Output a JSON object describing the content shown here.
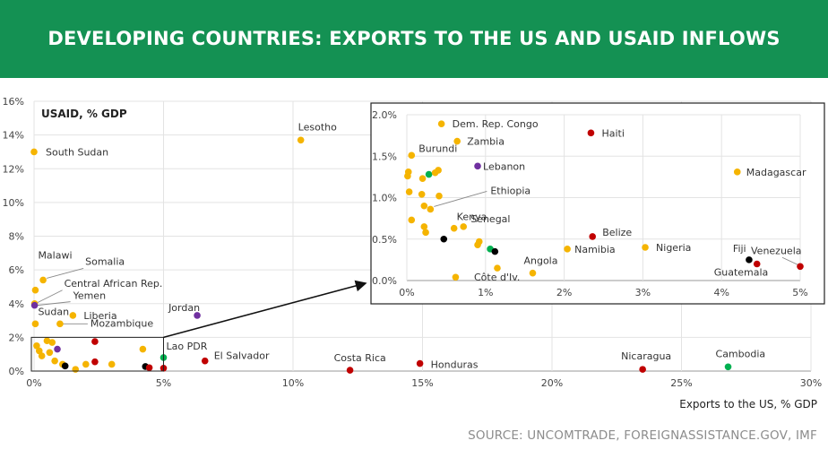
{
  "title": "DEVELOPING COUNTRIES: EXPORTS TO THE US AND USAID INFLOWS",
  "source": "SOURCE: UNCOMTRADE, FOREIGNASSISTANCE.GOV, IMF",
  "colors": {
    "banner": "#149153",
    "yellow": "#f5b400",
    "red": "#c00000",
    "purple": "#7030a0",
    "green": "#00b050",
    "black": "#000000"
  },
  "chart_data": [
    {
      "type": "scatter",
      "title": "",
      "xlabel": "Exports to the US, % GDP",
      "ylabel": "USAID, % GDP",
      "xlim": [
        0,
        30
      ],
      "ylim": [
        0,
        16
      ],
      "x_ticks": [
        "0%",
        "5%",
        "10%",
        "15%",
        "20%",
        "25%",
        "30%"
      ],
      "y_ticks": [
        "0%",
        "2%",
        "4%",
        "6%",
        "8%",
        "10%",
        "12%",
        "14%",
        "16%"
      ],
      "grid": true,
      "points": [
        {
          "label": "Lesotho",
          "x": 10.3,
          "y": 13.7,
          "color": "yellow"
        },
        {
          "label": "South Sudan",
          "x": 0.0,
          "y": 13.0,
          "color": "yellow"
        },
        {
          "label": "Malawi",
          "x": 0.05,
          "y": 4.8,
          "color": "yellow"
        },
        {
          "label": "Somalia",
          "x": 0.35,
          "y": 5.4,
          "color": "yellow"
        },
        {
          "label": "Central African Rep.",
          "x": 0.02,
          "y": 4.0,
          "color": "yellow"
        },
        {
          "label": "Yemen",
          "x": 0.02,
          "y": 3.9,
          "color": "purple"
        },
        {
          "label": "Sudan",
          "x": 0.05,
          "y": 2.8,
          "color": "yellow"
        },
        {
          "label": "Liberia",
          "x": 1.5,
          "y": 3.3,
          "color": "yellow"
        },
        {
          "label": "Mozambique",
          "x": 1.0,
          "y": 2.8,
          "color": "yellow"
        },
        {
          "label": "Jordan",
          "x": 6.3,
          "y": 3.3,
          "color": "purple"
        },
        {
          "label": "Lao PDR",
          "x": 5.0,
          "y": 0.8,
          "color": "green"
        },
        {
          "label": "El Salvador",
          "x": 6.6,
          "y": 0.6,
          "color": "red"
        },
        {
          "label": "Costa Rica",
          "x": 12.2,
          "y": 0.05,
          "color": "red"
        },
        {
          "label": "Honduras",
          "x": 14.9,
          "y": 0.45,
          "color": "red"
        },
        {
          "label": "Nicaragua",
          "x": 23.5,
          "y": 0.1,
          "color": "red"
        },
        {
          "label": "Cambodia",
          "x": 26.8,
          "y": 0.25,
          "color": "green"
        },
        {
          "label": "",
          "x": 0.1,
          "y": 1.5,
          "color": "yellow"
        },
        {
          "label": "",
          "x": 0.2,
          "y": 1.2,
          "color": "yellow"
        },
        {
          "label": "",
          "x": 0.3,
          "y": 0.9,
          "color": "yellow"
        },
        {
          "label": "",
          "x": 0.5,
          "y": 1.8,
          "color": "yellow"
        },
        {
          "label": "",
          "x": 0.6,
          "y": 1.1,
          "color": "yellow"
        },
        {
          "label": "",
          "x": 0.7,
          "y": 1.7,
          "color": "yellow"
        },
        {
          "label": "",
          "x": 0.8,
          "y": 0.6,
          "color": "yellow"
        },
        {
          "label": "",
          "x": 0.9,
          "y": 1.3,
          "color": "purple"
        },
        {
          "label": "",
          "x": 1.1,
          "y": 0.4,
          "color": "yellow"
        },
        {
          "label": "",
          "x": 1.2,
          "y": 0.3,
          "color": "black"
        },
        {
          "label": "",
          "x": 1.6,
          "y": 0.1,
          "color": "yellow"
        },
        {
          "label": "",
          "x": 2.0,
          "y": 0.4,
          "color": "yellow"
        },
        {
          "label": "",
          "x": 2.35,
          "y": 1.75,
          "color": "red"
        },
        {
          "label": "",
          "x": 2.35,
          "y": 0.55,
          "color": "red"
        },
        {
          "label": "",
          "x": 3.0,
          "y": 0.4,
          "color": "yellow"
        },
        {
          "label": "",
          "x": 4.2,
          "y": 1.3,
          "color": "yellow"
        },
        {
          "label": "",
          "x": 4.3,
          "y": 0.27,
          "color": "black"
        },
        {
          "label": "",
          "x": 4.45,
          "y": 0.2,
          "color": "red"
        },
        {
          "label": "",
          "x": 5.0,
          "y": 0.17,
          "color": "red"
        }
      ],
      "zoom_box": {
        "xlim": [
          0,
          5
        ],
        "ylim": [
          0,
          2
        ]
      }
    },
    {
      "type": "scatter",
      "title": "",
      "xlabel": "",
      "ylabel": "",
      "xlim": [
        0,
        5
      ],
      "ylim": [
        0,
        2
      ],
      "x_ticks": [
        "0%",
        "1%",
        "2%",
        "3%",
        "4%",
        "5%"
      ],
      "y_ticks": [
        "0.0%",
        "0.5%",
        "1.0%",
        "1.5%",
        "2.0%"
      ],
      "grid": true,
      "points": [
        {
          "label": "Dem. Rep. Congo",
          "x": 0.44,
          "y": 1.89,
          "color": "yellow"
        },
        {
          "label": "Zambia",
          "x": 0.64,
          "y": 1.68,
          "color": "yellow"
        },
        {
          "label": "Burundi",
          "x": 0.06,
          "y": 1.51,
          "color": "yellow"
        },
        {
          "label": "Haiti",
          "x": 2.34,
          "y": 1.78,
          "color": "red"
        },
        {
          "label": "Lebanon",
          "x": 0.9,
          "y": 1.38,
          "color": "purple"
        },
        {
          "label": "Madagascar",
          "x": 4.2,
          "y": 1.31,
          "color": "yellow"
        },
        {
          "label": "Ethiopia",
          "x": 0.3,
          "y": 0.86,
          "color": "yellow"
        },
        {
          "label": "Kenya",
          "x": 0.6,
          "y": 0.63,
          "color": "yellow"
        },
        {
          "label": "Senegal",
          "x": 0.72,
          "y": 0.65,
          "color": "yellow"
        },
        {
          "label": "Belize",
          "x": 2.36,
          "y": 0.53,
          "color": "red"
        },
        {
          "label": "Namibia",
          "x": 2.04,
          "y": 0.38,
          "color": "yellow"
        },
        {
          "label": "Nigeria",
          "x": 3.03,
          "y": 0.4,
          "color": "yellow"
        },
        {
          "label": "Fiji",
          "x": 4.35,
          "y": 0.25,
          "color": "black"
        },
        {
          "label": "Guatemala",
          "x": 4.45,
          "y": 0.2,
          "color": "red"
        },
        {
          "label": "Venezuela",
          "x": 5.0,
          "y": 0.17,
          "color": "red"
        },
        {
          "label": "Angola",
          "x": 1.6,
          "y": 0.09,
          "color": "yellow"
        },
        {
          "label": "Côte d'Iv.",
          "x": 1.15,
          "y": 0.15,
          "color": "yellow"
        },
        {
          "label": "",
          "x": 0.01,
          "y": 1.26,
          "color": "yellow"
        },
        {
          "label": "",
          "x": 0.02,
          "y": 1.31,
          "color": "yellow"
        },
        {
          "label": "",
          "x": 0.03,
          "y": 1.07,
          "color": "yellow"
        },
        {
          "label": "",
          "x": 0.06,
          "y": 0.73,
          "color": "yellow"
        },
        {
          "label": "",
          "x": 0.2,
          "y": 1.23,
          "color": "yellow"
        },
        {
          "label": "",
          "x": 0.19,
          "y": 1.04,
          "color": "yellow"
        },
        {
          "label": "",
          "x": 0.22,
          "y": 0.9,
          "color": "yellow"
        },
        {
          "label": "",
          "x": 0.22,
          "y": 0.65,
          "color": "yellow"
        },
        {
          "label": "",
          "x": 0.24,
          "y": 0.58,
          "color": "yellow"
        },
        {
          "label": "",
          "x": 0.28,
          "y": 1.28,
          "color": "green"
        },
        {
          "label": "",
          "x": 0.36,
          "y": 1.3,
          "color": "yellow"
        },
        {
          "label": "",
          "x": 0.4,
          "y": 1.33,
          "color": "yellow"
        },
        {
          "label": "",
          "x": 0.41,
          "y": 1.02,
          "color": "yellow"
        },
        {
          "label": "",
          "x": 0.47,
          "y": 0.5,
          "color": "black"
        },
        {
          "label": "",
          "x": 0.62,
          "y": 0.04,
          "color": "yellow"
        },
        {
          "label": "",
          "x": 0.9,
          "y": 0.43,
          "color": "yellow"
        },
        {
          "label": "",
          "x": 0.92,
          "y": 0.47,
          "color": "yellow"
        },
        {
          "label": "",
          "x": 1.06,
          "y": 0.38,
          "color": "green"
        },
        {
          "label": "",
          "x": 1.12,
          "y": 0.35,
          "color": "black"
        }
      ]
    }
  ]
}
